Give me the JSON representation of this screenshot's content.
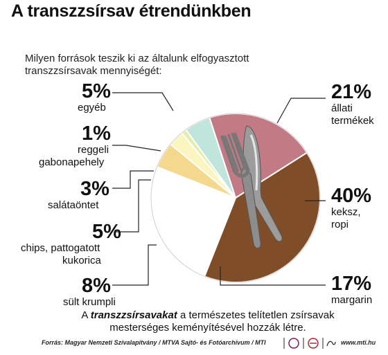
{
  "title": "A transzzsírsav étrendünkben",
  "subtitle": "Milyen források teszik ki az általunk elfogyasztott transzzsírsavak mennyiségét:",
  "chart_data": {
    "type": "pie",
    "slices": [
      {
        "key": "allati",
        "pct_label": "21%",
        "label_lines": [
          "állati",
          "termékek"
        ],
        "value": 21,
        "color": "#c27a84"
      },
      {
        "key": "keksz",
        "pct_label": "40%",
        "label_lines": [
          "keksz,",
          "ropi"
        ],
        "value": 40,
        "color": "#7f4e28"
      },
      {
        "key": "margarin",
        "pct_label": "17%",
        "label_lines": [
          "margarin"
        ],
        "value": 17,
        "color": "#ffffff"
      },
      {
        "key": "krumpli",
        "pct_label": "8%",
        "label_lines": [
          "sült krumpli"
        ],
        "value": 8,
        "color": "#ffffff"
      },
      {
        "key": "chips",
        "pct_label": "5%",
        "label_lines": [
          "chips, pattogatott",
          "kukorica"
        ],
        "value": 5,
        "color": "#f3d88e"
      },
      {
        "key": "salata",
        "pct_label": "3%",
        "label_lines": [
          "salátaöntet"
        ],
        "value": 3,
        "color": "#fbf6c0"
      },
      {
        "key": "gabona",
        "pct_label": "1%",
        "label_lines": [
          "reggeli",
          "gabonapehely"
        ],
        "value": 1,
        "color": "#e3efa8"
      },
      {
        "key": "egyeb",
        "pct_label": "5%",
        "label_lines": [
          "egyéb"
        ],
        "value": 5,
        "color": "#bfe5dc"
      }
    ]
  },
  "footnote": {
    "bold": "transzzsírsavakat",
    "line1_prefix": "A ",
    "line1_suffix": " a természetes telítetlen zsírsavak",
    "line2": "mesterséges keményítésével hozzák létre."
  },
  "credit": "Forrás: Magyar Nemzeti Szívalapítvány / MTVA Sajtó- és Fotóarchívum / MTI",
  "site": "www.mti.hu"
}
